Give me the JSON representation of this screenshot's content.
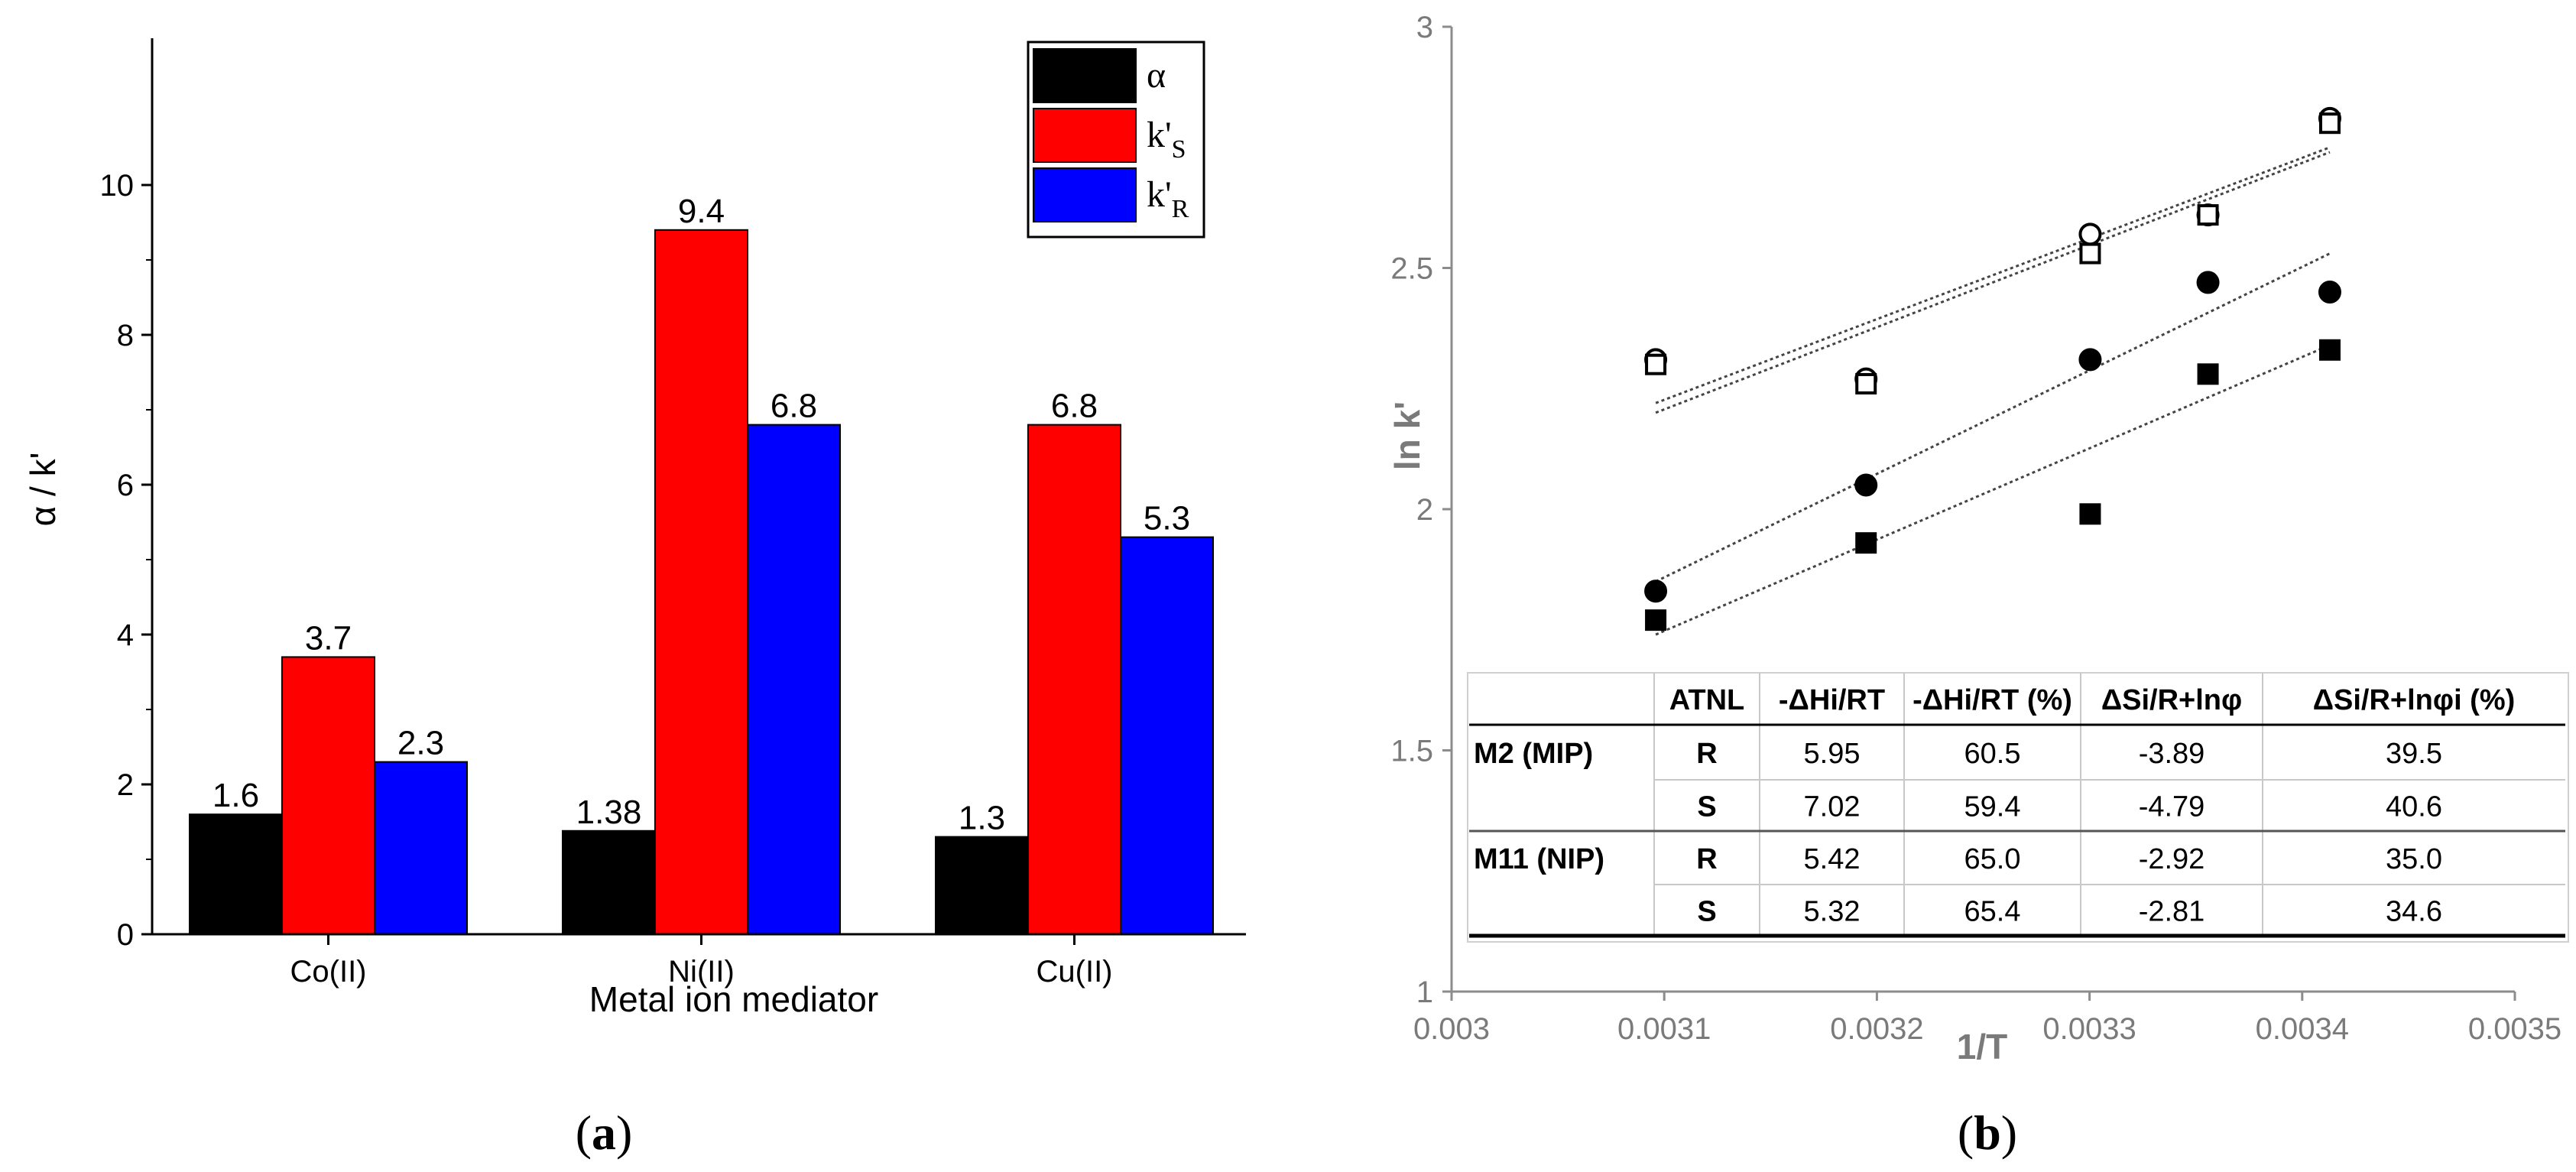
{
  "panel_a_label": "a",
  "panel_b_label": "b",
  "chart_data": [
    {
      "type": "bar",
      "categories": [
        "Co(II)",
        "Ni(II)",
        "Cu(II)"
      ],
      "series": [
        {
          "name": "α",
          "values": [
            1.6,
            1.38,
            1.3
          ],
          "color": "#000000"
        },
        {
          "name": "k'S",
          "values": [
            3.7,
            9.4,
            6.8
          ],
          "color": "#ff0000"
        },
        {
          "name": "k'R",
          "values": [
            2.3,
            6.8,
            5.3
          ],
          "color": "#0000ff"
        }
      ],
      "data_labels": [
        [
          "1.6",
          "1.38",
          "1.3"
        ],
        [
          "3.7",
          "9.4",
          "6.8"
        ],
        [
          "2.3",
          "6.8",
          "5.3"
        ]
      ],
      "legend": {
        "position": "top-right",
        "entries": [
          {
            "main": "α",
            "sub": ""
          },
          {
            "main": "k'",
            "sub": "S"
          },
          {
            "main": "k'",
            "sub": "R"
          }
        ]
      },
      "xlabel": "Metal ion mediator",
      "ylabel": "α / k'",
      "ylim": [
        0,
        11
      ],
      "yticks": [
        0,
        2,
        4,
        6,
        8,
        10
      ],
      "ytick_labels": [
        "0",
        "2",
        "4",
        "6",
        "8",
        "10"
      ]
    },
    {
      "type": "scatter",
      "xlabel": "1/T",
      "ylabel": "ln k'",
      "xlim": [
        0.003,
        0.0035
      ],
      "ylim": [
        1,
        3
      ],
      "xticks": [
        0.003,
        0.0031,
        0.0032,
        0.0033,
        0.0034,
        0.0035
      ],
      "xtick_labels": [
        "0.003",
        "0.0031",
        "0.0032",
        "0.0033",
        "0.0034",
        "0.0035"
      ],
      "yticks": [
        1,
        1.5,
        2,
        2.5,
        3
      ],
      "ytick_labels": [
        "1",
        "1.5",
        "2",
        "2.5",
        "3"
      ],
      "series": [
        {
          "marker": "open-circle",
          "points": [
            [
              0.003096,
              2.31
            ],
            [
              0.0031949,
              2.27
            ],
            [
              0.0033003,
              2.57
            ],
            [
              0.0033557,
              2.61
            ],
            [
              0.003413,
              2.81
            ]
          ],
          "trend": [
            [
              0.003096,
              2.22
            ],
            [
              0.003413,
              2.75
            ]
          ]
        },
        {
          "marker": "open-square",
          "points": [
            [
              0.003096,
              2.3
            ],
            [
              0.0031949,
              2.26
            ],
            [
              0.0033003,
              2.53
            ],
            [
              0.0033557,
              2.61
            ],
            [
              0.003413,
              2.8
            ]
          ],
          "trend": [
            [
              0.003096,
              2.2
            ],
            [
              0.003413,
              2.74
            ]
          ]
        },
        {
          "marker": "filled-circle",
          "points": [
            [
              0.003096,
              1.83
            ],
            [
              0.0031949,
              2.05
            ],
            [
              0.0033003,
              2.31
            ],
            [
              0.0033557,
              2.47
            ],
            [
              0.003413,
              2.45
            ]
          ],
          "trend": [
            [
              0.003096,
              1.85
            ],
            [
              0.003413,
              2.53
            ]
          ]
        },
        {
          "marker": "filled-square",
          "points": [
            [
              0.003096,
              1.77
            ],
            [
              0.0031949,
              1.93
            ],
            [
              0.0033003,
              1.99
            ],
            [
              0.0033557,
              2.28
            ],
            [
              0.003413,
              2.33
            ]
          ],
          "trend": [
            [
              0.003096,
              1.74
            ],
            [
              0.003413,
              2.34
            ]
          ]
        }
      ],
      "table": {
        "headers": [
          "",
          "ATNL",
          "-ΔHi/RT",
          "-ΔHi/RT (%)",
          "ΔSi/R+lnφ",
          "ΔSi/R+lnφi (%)"
        ],
        "rows": [
          [
            "M2 (MIP)",
            "R",
            "5.95",
            "60.5",
            "-3.89",
            "39.5"
          ],
          [
            "",
            "S",
            "7.02",
            "59.4",
            "-4.79",
            "40.6"
          ],
          [
            "M11 (NIP)",
            "R",
            "5.42",
            "65.0",
            "-2.92",
            "35.0"
          ],
          [
            "",
            "S",
            "5.32",
            "65.4",
            "-2.81",
            "34.6"
          ]
        ]
      }
    }
  ]
}
